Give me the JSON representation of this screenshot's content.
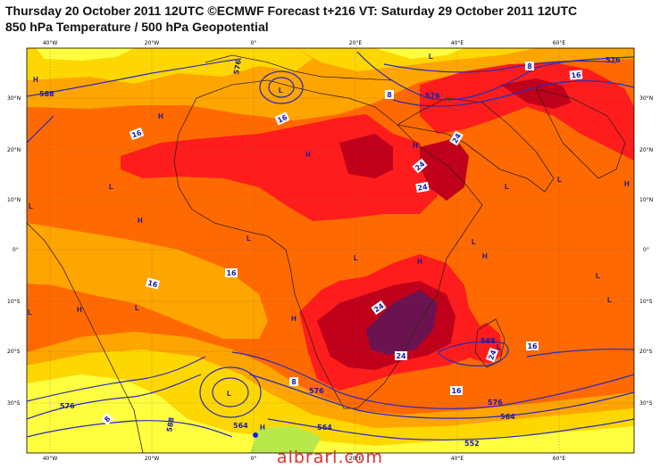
{
  "header": {
    "line1": "Thursday 20 October 2011 12UTC ©ECMWF Forecast t+216 VT: Saturday 29 October 2011 12UTC",
    "line2": "850 hPa Temperature / 500 hPa Geopotential"
  },
  "axes": {
    "top": [
      "40°W",
      "20°W",
      "0°",
      "20°E",
      "40°E",
      "60°E"
    ],
    "bottom": [
      "40°W",
      "20°W",
      "0°",
      "20°E",
      "40°E",
      "60°E"
    ],
    "left": [
      "30°N",
      "20°N",
      "10°N",
      "0°",
      "10°S",
      "20°S",
      "30°S"
    ],
    "right": [
      "30°N",
      "20°N",
      "10°N",
      "0°",
      "10°S",
      "20°S",
      "30°S"
    ]
  },
  "temperature_labels": [
    "16",
    "16",
    "16",
    "16",
    "16",
    "16",
    "16",
    "24",
    "24",
    "24",
    "24",
    "24",
    "24",
    "8",
    "8",
    "8",
    "8"
  ],
  "geopotential_labels": [
    "576",
    "588",
    "576",
    "576",
    "576",
    "576",
    "564",
    "564",
    "564",
    "576",
    "588",
    "552",
    "588"
  ],
  "pressure_centers": [
    "H",
    "H",
    "L",
    "L",
    "H",
    "H",
    "L",
    "L",
    "L",
    "H",
    "L",
    "L",
    "L",
    "H",
    "H",
    "L",
    "H",
    "H",
    "L",
    "L",
    "H",
    "L",
    "H",
    "L",
    "L",
    "L"
  ],
  "colors": {
    "t_below8": "#ffff40",
    "t_8_12": "#ffd700",
    "t_12_16": "#ffa500",
    "t_16_20": "#ff6a00",
    "t_20_24": "#ff1c1c",
    "t_24_28": "#c0001a",
    "t_above28": "#6a1350",
    "contour": "#2a2ab8",
    "coast": "#3a2010"
  },
  "watermark": "albrari.com"
}
